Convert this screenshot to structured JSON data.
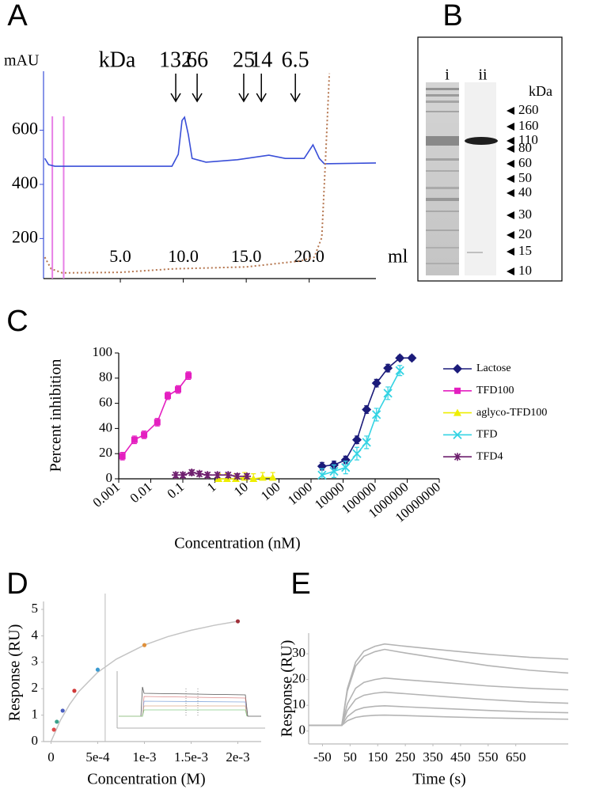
{
  "chart_data": [
    {
      "type": "line",
      "panel": "A",
      "y_label": "mAU",
      "x_label": "ml",
      "xlim": [
        -1.1,
        25.3
      ],
      "ylim": [
        52,
        818
      ],
      "xticks": [
        {
          "value": 5,
          "label": "5.0"
        },
        {
          "value": 10,
          "label": "10.0"
        },
        {
          "value": 15,
          "label": "15.0"
        },
        {
          "value": 20,
          "label": "20.0"
        }
      ],
      "yticks": [
        200,
        400,
        600
      ],
      "series": [
        {
          "color": "#3a4fd8",
          "x": [
            -1.0,
            -0.7,
            -0.2,
            9.1,
            9.6,
            9.9,
            10.1,
            10.4,
            10.7,
            11.8,
            14.3,
            16.8,
            18.1,
            19.6,
            20.3,
            20.8,
            21.2,
            25.3
          ],
          "values": [
            496,
            473,
            467,
            467,
            511,
            636,
            648,
            584,
            496,
            482,
            491,
            508,
            496,
            496,
            546,
            496,
            476,
            479
          ]
        },
        {
          "color": "#b5764f",
          "style": "dotted",
          "x": [
            -1.0,
            -0.5,
            0.4,
            5.0,
            9.2,
            15.0,
            19.3,
            20.4,
            21.0,
            21.3,
            21.6
          ],
          "values": [
            131,
            88,
            73,
            75,
            88,
            95,
            117,
            131,
            204,
            496,
            810
          ]
        }
      ],
      "vlines": {
        "x": [
          -0.4,
          0.5
        ],
        "color": "#e77fe6"
      },
      "markers": {
        "title": "kDa",
        "labels": [
          132,
          66,
          25,
          14,
          6.5
        ],
        "x": [
          9.4,
          11.1,
          14.8,
          16.2,
          18.9
        ]
      }
    },
    {
      "type": "line",
      "panel": "C",
      "y_label": "Percent inhibition",
      "x_label": "Concentration (nM)",
      "log_x": true,
      "xlim": [
        0.001,
        10000000
      ],
      "ylim": [
        0,
        100
      ],
      "xticks": [
        0.001,
        0.01,
        0.1,
        1,
        10,
        100,
        1000,
        10000,
        100000,
        1000000,
        10000000
      ],
      "yticks": [
        0,
        20,
        40,
        60,
        80,
        100
      ],
      "legend": "right",
      "series": [
        {
          "name": "Lactose",
          "color": "#1b1b7a",
          "marker": "diamond",
          "x": [
            2200,
            5200,
            12000,
            27000,
            54000,
            110000,
            250000,
            590000,
            1400000
          ],
          "values": [
            10,
            11,
            15,
            31,
            55,
            76,
            88,
            96,
            96
          ],
          "errors": [
            3,
            3,
            3,
            3,
            3,
            3,
            3,
            2,
            2
          ]
        },
        {
          "name": "TFD100",
          "color": "#e41fc0",
          "marker": "square",
          "x": [
            0.0013,
            0.0031,
            0.0062,
            0.016,
            0.034,
            0.071,
            0.15
          ],
          "values": [
            18,
            31,
            35,
            45,
            66,
            71,
            82
          ],
          "errors": [
            3,
            3,
            3,
            3,
            3,
            3,
            3
          ]
        },
        {
          "name": "aglyco-TFD100",
          "color": "#eeee00",
          "marker": "triangle",
          "x": [
            1.3,
            2.4,
            4.5,
            8.5,
            16,
            31,
            64
          ],
          "values": [
            0,
            0,
            0,
            1,
            0,
            1,
            1
          ],
          "errors": [
            4,
            4,
            4,
            4,
            4,
            4,
            4
          ]
        },
        {
          "name": "TFD",
          "color": "#33d3e3",
          "marker": "x",
          "x": [
            2200,
            5200,
            12000,
            27000,
            54000,
            110000,
            250000,
            590000
          ],
          "values": [
            3,
            6,
            9,
            20,
            29,
            51,
            68,
            86
          ],
          "errors": [
            5,
            5,
            5,
            5,
            5,
            5,
            5,
            4
          ]
        },
        {
          "name": "TFD4",
          "color": "#6e1f6e",
          "marker": "star",
          "x": [
            0.06,
            0.1,
            0.19,
            0.33,
            0.59,
            1.2,
            2.6,
            5,
            10
          ],
          "values": [
            3,
            3,
            5,
            4,
            3,
            3,
            3,
            2,
            2
          ],
          "errors": [
            2,
            2,
            2,
            2,
            2,
            2,
            2,
            2,
            2
          ]
        }
      ]
    },
    {
      "type": "scatter",
      "panel": "D",
      "y_label": "Response (RU)",
      "x_label": "Concentration (M)",
      "xlim": [
        -8e-05,
        0.00225
      ],
      "ylim": [
        0,
        5.3
      ],
      "xticks": [
        0,
        {
          "value": 0.0005,
          "label": "5e-4"
        },
        {
          "value": 0.001,
          "label": "1e-3"
        },
        {
          "value": 0.0015,
          "label": "1.5e-3"
        },
        {
          "value": 0.002,
          "label": "2e-3"
        }
      ],
      "yticks": [
        0,
        1,
        2,
        3,
        4,
        5
      ],
      "x": [
        3.125e-05,
        6.25e-05,
        0.000125,
        0.00025,
        0.0005,
        0.001,
        0.002
      ],
      "values": [
        0.45,
        0.75,
        1.17,
        1.92,
        2.72,
        3.65,
        4.55
      ],
      "colors": [
        "#e04a4a",
        "#3aa08a",
        "#4a5fc0",
        "#d03838",
        "#3a9ad0",
        "#e0903a",
        "#a0303a"
      ],
      "curve": {
        "color": "#c4c4c4",
        "x": [
          0,
          0.0001,
          0.0002,
          0.0003,
          0.0005,
          0.0007,
          0.001,
          0.00125,
          0.0015,
          0.00175,
          0.002
        ],
        "values": [
          0,
          0.8,
          1.41,
          1.9,
          2.62,
          3.12,
          3.65,
          3.97,
          4.21,
          4.4,
          4.55
        ]
      },
      "vline": 0.00058
    },
    {
      "type": "line",
      "panel": "E",
      "y_label": "Response (RU)",
      "x_label": "Time (s)",
      "xlim": [
        -100,
        840
      ],
      "ylim": [
        -5,
        38
      ],
      "xticks": [
        -50,
        50,
        150,
        250,
        350,
        450,
        550,
        650
      ],
      "yticks": [
        0,
        10,
        20,
        30
      ],
      "x": [
        -100,
        20,
        40,
        70,
        100,
        140,
        175,
        250,
        400,
        550,
        700,
        840
      ],
      "series": [
        {
          "color": "#b4b4b4",
          "values": [
            2.2,
            2.2,
            16.4,
            26.8,
            31.0,
            32.9,
            33.8,
            32.9,
            31.3,
            29.8,
            28.6,
            27.9
          ]
        },
        {
          "color": "#b4b4b4",
          "values": [
            2.2,
            2.2,
            15.5,
            25.2,
            29.0,
            30.8,
            31.7,
            30.3,
            27.8,
            25.4,
            23.6,
            22.5
          ]
        },
        {
          "color": "#b4b4b4",
          "values": [
            2.2,
            2.2,
            10.5,
            16.6,
            18.9,
            20.0,
            20.6,
            19.9,
            18.7,
            17.5,
            16.6,
            16.0
          ]
        },
        {
          "color": "#b4b4b4",
          "values": [
            2.2,
            2.2,
            8.0,
            12.3,
            13.9,
            14.7,
            15.1,
            14.5,
            13.3,
            12.2,
            11.3,
            10.8
          ]
        },
        {
          "color": "#b4b4b4",
          "values": [
            2.2,
            2.2,
            5.6,
            8.1,
            9.1,
            9.6,
            9.8,
            9.4,
            8.7,
            8.0,
            7.4,
            7.1
          ]
        },
        {
          "color": "#b4b4b4",
          "values": [
            2.2,
            2.2,
            4.0,
            5.3,
            5.8,
            6.1,
            6.2,
            6.0,
            5.5,
            5.1,
            4.8,
            4.6
          ]
        }
      ]
    }
  ],
  "gel": {
    "panel": "B",
    "lanes": [
      "i",
      "ii"
    ],
    "unit": "kDa",
    "markers": [
      260,
      160,
      110,
      80,
      60,
      50,
      40,
      30,
      20,
      15,
      10
    ]
  }
}
